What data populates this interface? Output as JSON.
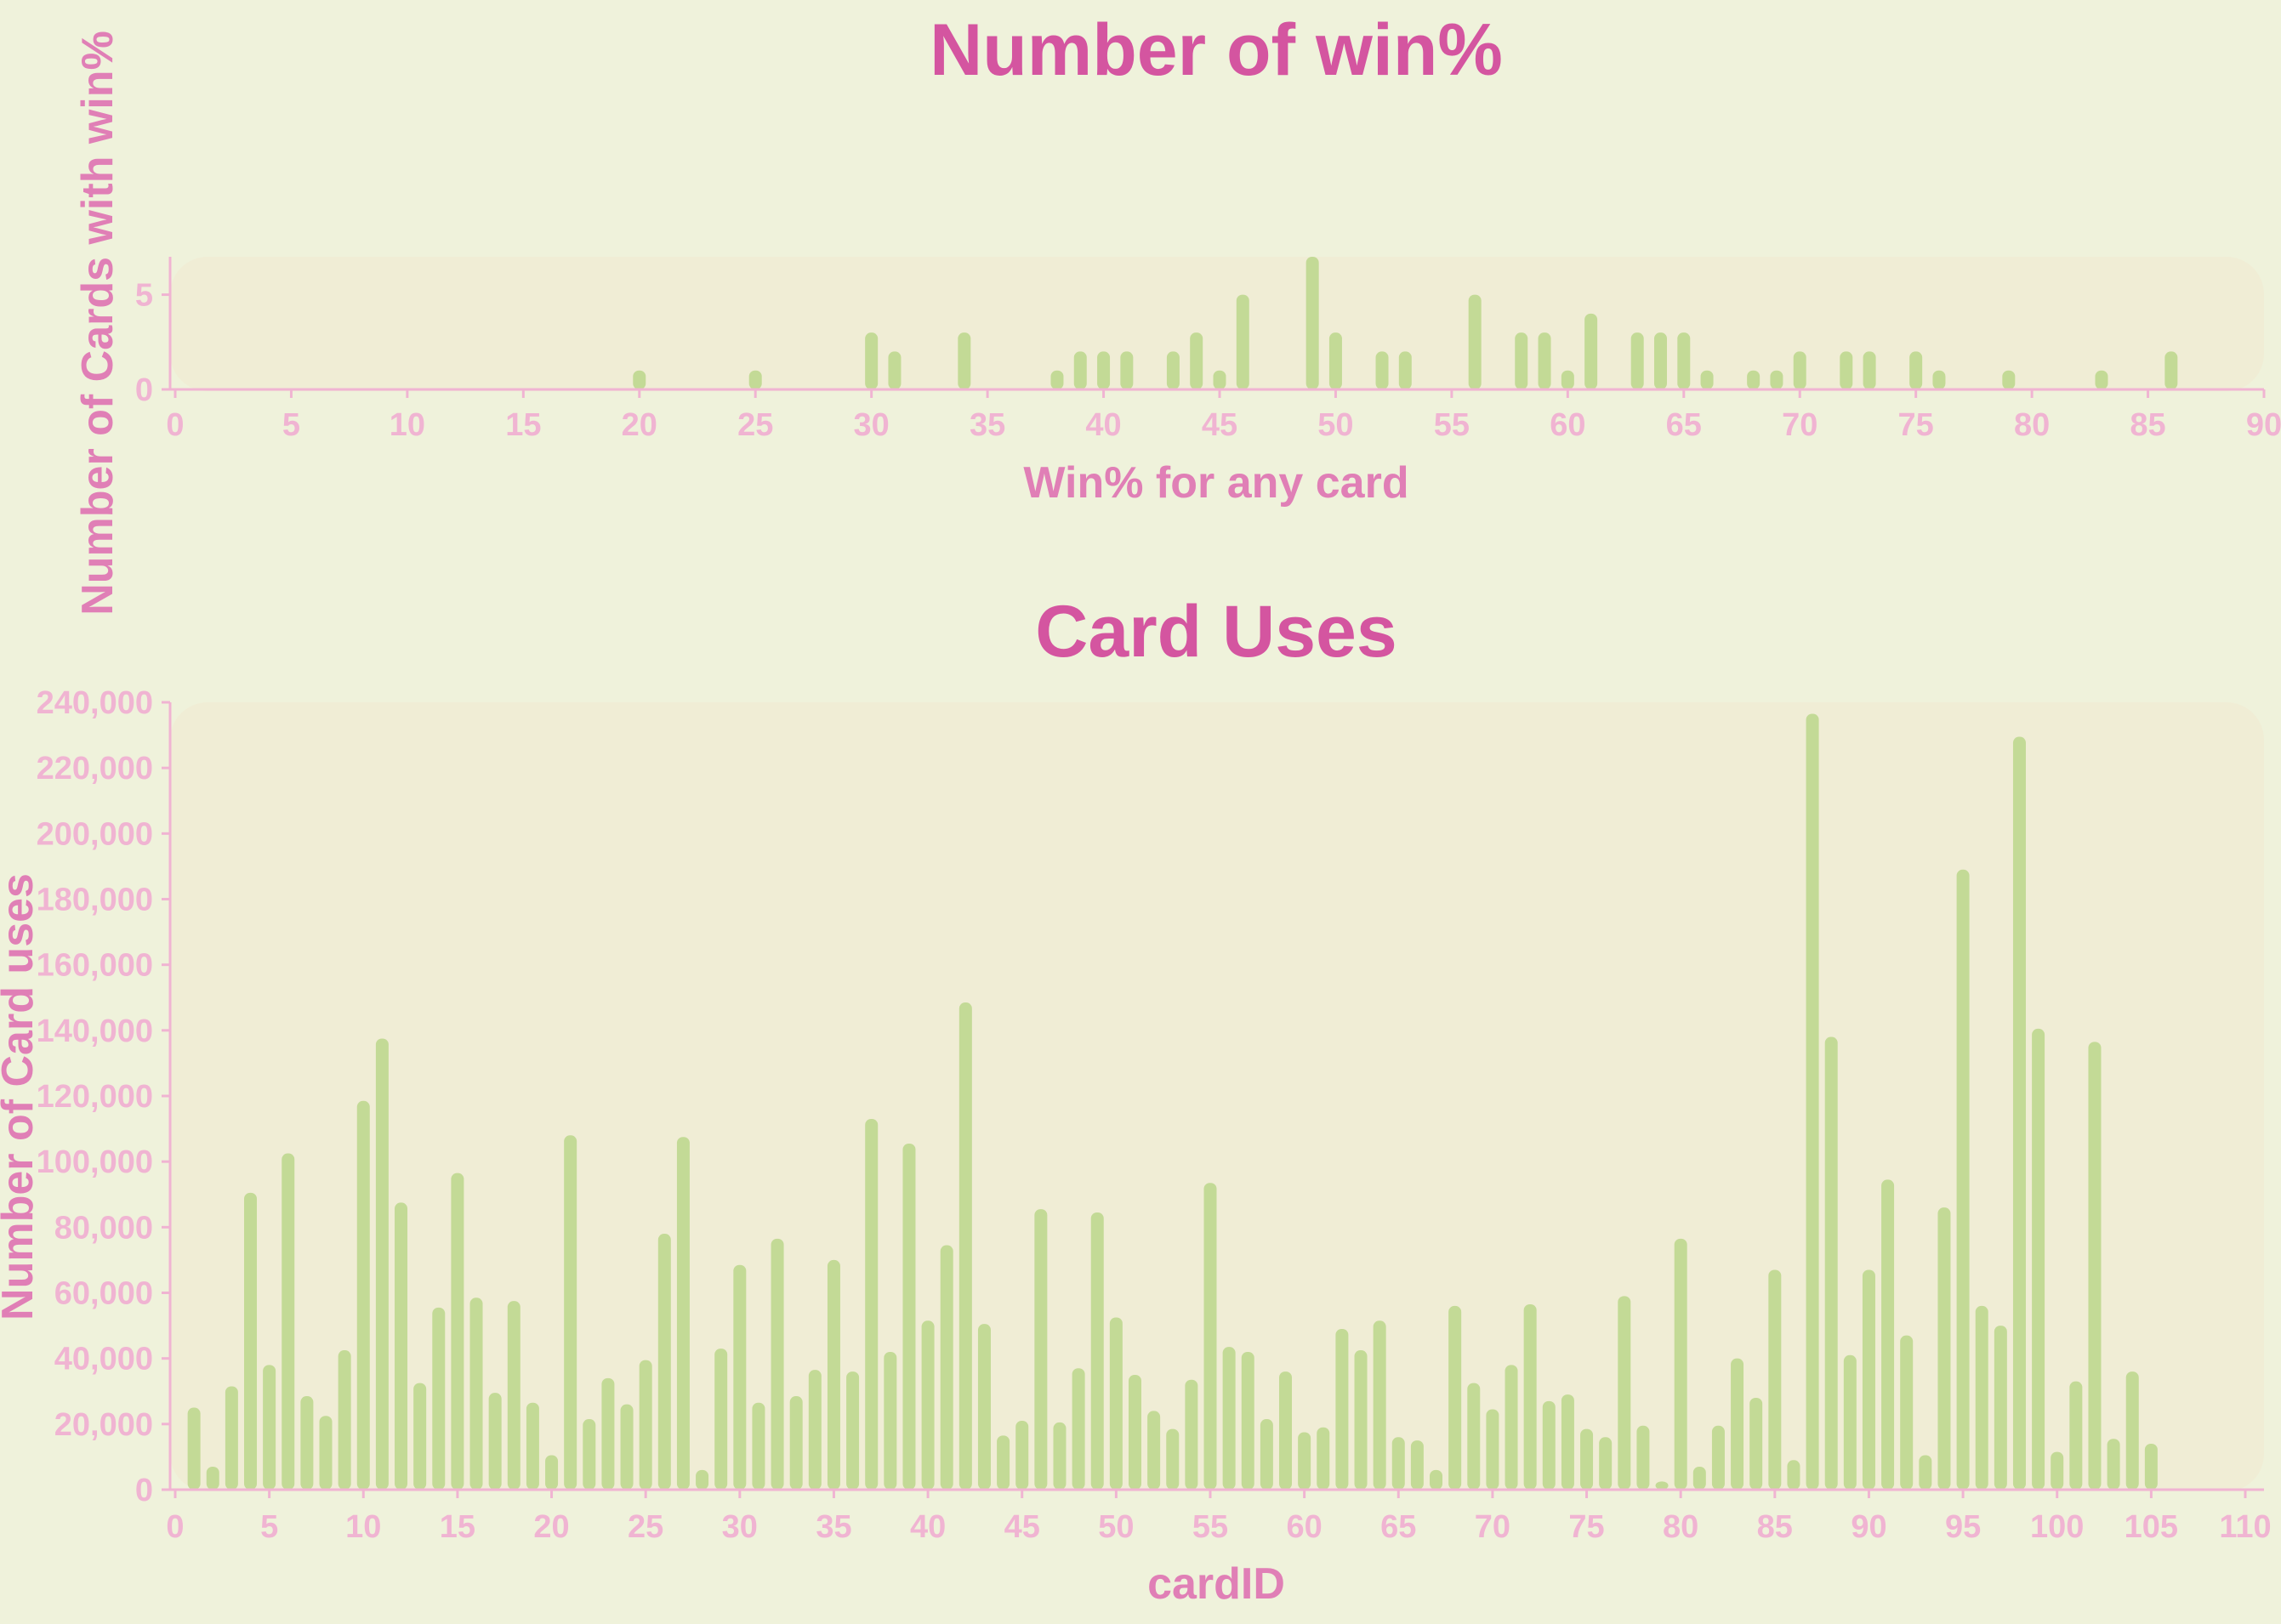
{
  "colors": {
    "background": "#eff2db",
    "plot_background": "#f0edd5",
    "title": "#d455a0",
    "axis_label": "#e07fb6",
    "tick": "#f0b4d2",
    "bar": "#c3da96"
  },
  "chart_data": [
    {
      "type": "bar",
      "title": "Number of win%",
      "xlabel": "Win% for any card",
      "ylabel": "Number of Cards with win%",
      "xlim": [
        0,
        90
      ],
      "ylim": [
        0,
        7
      ],
      "x_ticks": [
        0,
        5,
        10,
        15,
        20,
        25,
        30,
        35,
        40,
        45,
        50,
        55,
        60,
        65,
        70,
        75,
        80,
        85,
        90
      ],
      "y_ticks": [
        0,
        5
      ],
      "y_tick_labels": [
        "0",
        "5"
      ],
      "x": [
        20,
        25,
        30,
        31,
        34,
        38,
        39,
        40,
        41,
        43,
        44,
        45,
        46,
        49,
        50,
        52,
        53,
        56,
        58,
        59,
        60,
        61,
        63,
        64,
        65,
        66,
        68,
        69,
        70,
        72,
        73,
        75,
        76,
        79,
        83,
        86
      ],
      "values": [
        1,
        1,
        3,
        2,
        3,
        1,
        2,
        2,
        2,
        2,
        3,
        1,
        5,
        7,
        3,
        2,
        2,
        5,
        3,
        3,
        1,
        4,
        3,
        3,
        3,
        1,
        1,
        1,
        2,
        2,
        2,
        2,
        1,
        1,
        1,
        2
      ]
    },
    {
      "type": "bar",
      "title": "Card Uses",
      "xlabel": "cardID",
      "ylabel": "Number of Card uses",
      "xlim": [
        0,
        110
      ],
      "ylim": [
        0,
        240000
      ],
      "x_ticks": [
        0,
        5,
        10,
        15,
        20,
        25,
        30,
        35,
        40,
        45,
        50,
        55,
        60,
        65,
        70,
        75,
        80,
        85,
        90,
        95,
        100,
        105,
        110
      ],
      "y_ticks": [
        0,
        20000,
        40000,
        60000,
        80000,
        100000,
        120000,
        140000,
        160000,
        180000,
        200000,
        220000,
        240000
      ],
      "y_tick_labels": [
        "0",
        "20,000",
        "40,000",
        "60,000",
        "80,000",
        "100,000",
        "120,000",
        "140,000",
        "160,000",
        "180,000",
        "200,000",
        "220,000",
        "240,000"
      ],
      "x": [
        1,
        2,
        3,
        4,
        5,
        6,
        7,
        8,
        9,
        10,
        11,
        12,
        13,
        14,
        15,
        16,
        17,
        18,
        19,
        20,
        21,
        22,
        23,
        24,
        25,
        26,
        27,
        28,
        29,
        30,
        31,
        32,
        33,
        34,
        35,
        36,
        37,
        38,
        39,
        40,
        41,
        42,
        43,
        44,
        45,
        46,
        47,
        48,
        49,
        50,
        51,
        52,
        53,
        54,
        55,
        56,
        57,
        58,
        59,
        60,
        61,
        62,
        63,
        64,
        65,
        66,
        67,
        68,
        69,
        70,
        71,
        72,
        73,
        74,
        75,
        76,
        77,
        78,
        79,
        80,
        81,
        82,
        83,
        84,
        85,
        86,
        87,
        88,
        89,
        90,
        91,
        92,
        93,
        94,
        95,
        96,
        97,
        98,
        99,
        100,
        101,
        102,
        103,
        104,
        105
      ],
      "values": [
        25000,
        7000,
        31500,
        90500,
        38000,
        102500,
        28500,
        22500,
        42500,
        118500,
        137500,
        87500,
        32500,
        55500,
        96500,
        58500,
        29500,
        57500,
        26500,
        10500,
        108000,
        21500,
        34000,
        26000,
        39500,
        78000,
        107500,
        6000,
        43000,
        68500,
        26500,
        76500,
        28500,
        36500,
        70000,
        36000,
        113000,
        42000,
        105500,
        51500,
        74500,
        148500,
        50500,
        16500,
        21000,
        85500,
        20500,
        37000,
        84500,
        52500,
        35000,
        24000,
        18500,
        33500,
        93500,
        43500,
        42000,
        21500,
        36000,
        17500,
        19000,
        49000,
        42500,
        51500,
        16000,
        15000,
        6000,
        56000,
        32500,
        24500,
        38000,
        56500,
        27000,
        29000,
        18500,
        16000,
        59000,
        19500,
        2500,
        76500,
        7000,
        19500,
        40000,
        28000,
        67000,
        9000,
        236500,
        138000,
        41000,
        67000,
        94500,
        47000,
        10500,
        86000,
        189000,
        56000,
        50000,
        229500,
        140500,
        11500,
        33000,
        136500,
        15500,
        36000,
        14000
      ]
    }
  ]
}
